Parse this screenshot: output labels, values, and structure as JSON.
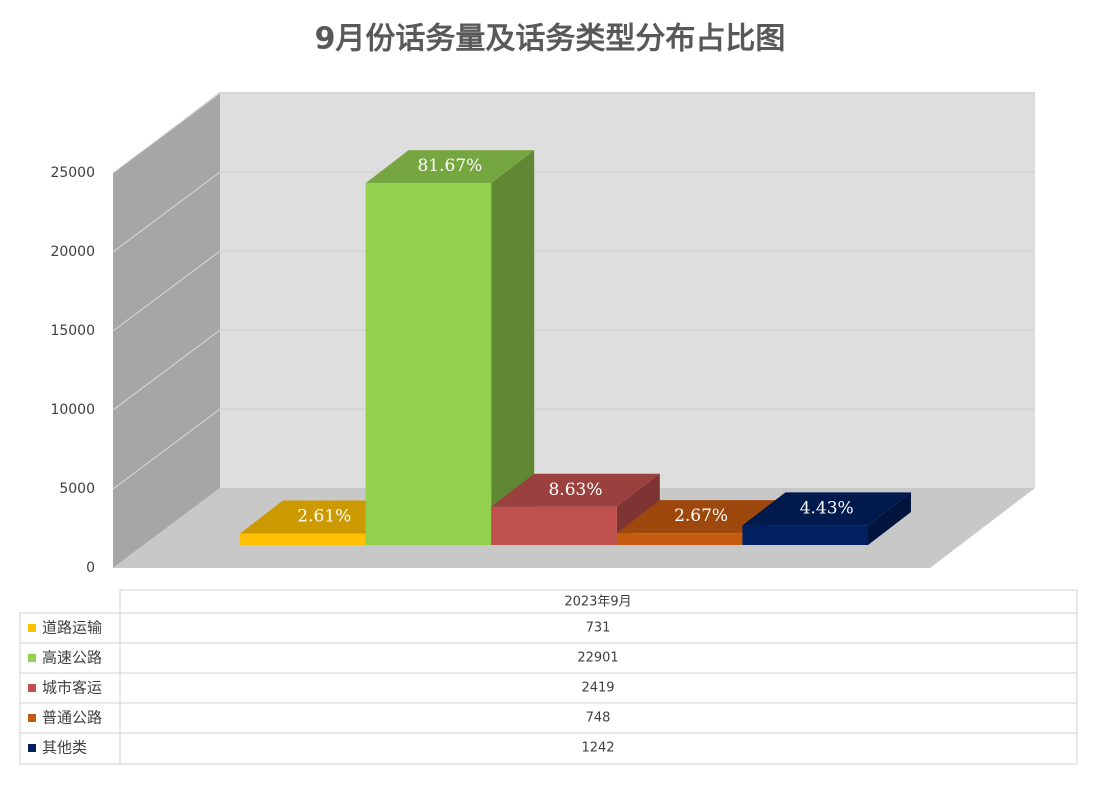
{
  "chart_data": {
    "type": "bar",
    "title": "9月份话务量及话务类型分布占比图",
    "categories": [
      "2023年9月"
    ],
    "series": [
      {
        "name": "道路运输",
        "color": "#ffc000",
        "values": [
          731
        ],
        "share_labels": [
          "2.61%"
        ]
      },
      {
        "name": "高速公路",
        "color": "#92d050",
        "values": [
          22901
        ],
        "share_labels": [
          "81.67%"
        ]
      },
      {
        "name": "城市客运",
        "color": "#c0504d",
        "values": [
          2419
        ],
        "share_labels": [
          "8.63%"
        ]
      },
      {
        "name": "普通公路",
        "color": "#c55a11",
        "values": [
          748
        ],
        "share_labels": [
          "2.67%"
        ]
      },
      {
        "name": "其他类",
        "color": "#002060",
        "values": [
          1242
        ],
        "share_labels": [
          "4.43%"
        ]
      }
    ],
    "ylim": [
      0,
      25000
    ],
    "yticks": [
      0,
      5000,
      10000,
      15000,
      20000,
      25000
    ],
    "grid": true
  }
}
